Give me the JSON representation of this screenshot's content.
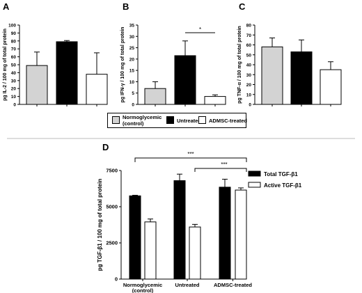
{
  "divider_color": "#bbbbbb",
  "colors": {
    "normoglycemic": "#d3d3d3",
    "untreated": "#000000",
    "admsc": "#ffffff",
    "total_tgf": "#000000",
    "active_tgf": "#ffffff"
  },
  "legend_top": {
    "items": [
      {
        "label": "Normoglycemic (control)",
        "color": "#d3d3d3"
      },
      {
        "label": "Untreated",
        "color": "#000000"
      },
      {
        "label": "ADMSC-treated",
        "color": "#ffffff"
      }
    ]
  },
  "chart_data": [
    {
      "panel": "A",
      "type": "bar",
      "ylabel": "pg IL-2 / 100 mg of total protein",
      "ylim": [
        0,
        100
      ],
      "yticks": [
        0,
        10,
        20,
        30,
        40,
        50,
        60,
        70,
        80,
        90,
        100
      ],
      "categories": [
        "Normoglycemic (control)",
        "Untreated",
        "ADMSC-treated"
      ],
      "values": [
        49,
        79,
        38
      ],
      "errors": [
        17,
        1.5,
        27
      ],
      "colors": [
        "#d3d3d3",
        "#000000",
        "#ffffff"
      ],
      "significance": []
    },
    {
      "panel": "B",
      "type": "bar",
      "ylabel": "pg IFN-γ / 100 mg of total protein",
      "ylim": [
        0,
        35
      ],
      "yticks": [
        0,
        5,
        10,
        15,
        20,
        25,
        30,
        35
      ],
      "categories": [
        "Normoglycemic (control)",
        "Untreated",
        "ADMSC-treated"
      ],
      "values": [
        7,
        21.5,
        3.5
      ],
      "errors": [
        3,
        6.5,
        0.7
      ],
      "colors": [
        "#d3d3d3",
        "#000000",
        "#ffffff"
      ],
      "significance": [
        {
          "from": 1,
          "to": 2,
          "label": "*"
        }
      ]
    },
    {
      "panel": "C",
      "type": "bar",
      "ylabel": "pg TNF-α / 100 mg of total protein",
      "ylim": [
        0,
        80
      ],
      "yticks": [
        0,
        10,
        20,
        30,
        40,
        50,
        60,
        70,
        80
      ],
      "categories": [
        "Normoglycemic (control)",
        "Untreated",
        "ADMSC-treated"
      ],
      "values": [
        58,
        53,
        35
      ],
      "errors": [
        9,
        12,
        8
      ],
      "colors": [
        "#d3d3d3",
        "#000000",
        "#ffffff"
      ],
      "significance": []
    },
    {
      "panel": "D",
      "type": "bar",
      "ylabel": "pg TGF-β1 / 100 mg of total protein",
      "ylim": [
        0,
        7500
      ],
      "yticks": [
        0,
        2500,
        5000,
        7500
      ],
      "categories": [
        "Normoglycemic",
        "Untreated",
        "ADMSC-treated"
      ],
      "category_sublabels": [
        "(control)",
        "",
        ""
      ],
      "series": [
        {
          "name": "Total TGF-β1",
          "color": "#000000",
          "values": [
            5750,
            6800,
            6350
          ],
          "errors": [
            40,
            450,
            550
          ]
        },
        {
          "name": "Active TGF-β1",
          "color": "#ffffff",
          "values": [
            3950,
            3600,
            6150
          ],
          "errors": [
            200,
            180,
            150
          ]
        }
      ],
      "legend": "top-right",
      "significance": [
        {
          "label": "***",
          "from": "Normoglycemic (control) Active TGF-β1",
          "to": "ADMSC-treated Active TGF-β1"
        },
        {
          "label": "***",
          "from": "Untreated Active TGF-β1",
          "to": "ADMSC-treated Active TGF-β1"
        }
      ]
    }
  ]
}
